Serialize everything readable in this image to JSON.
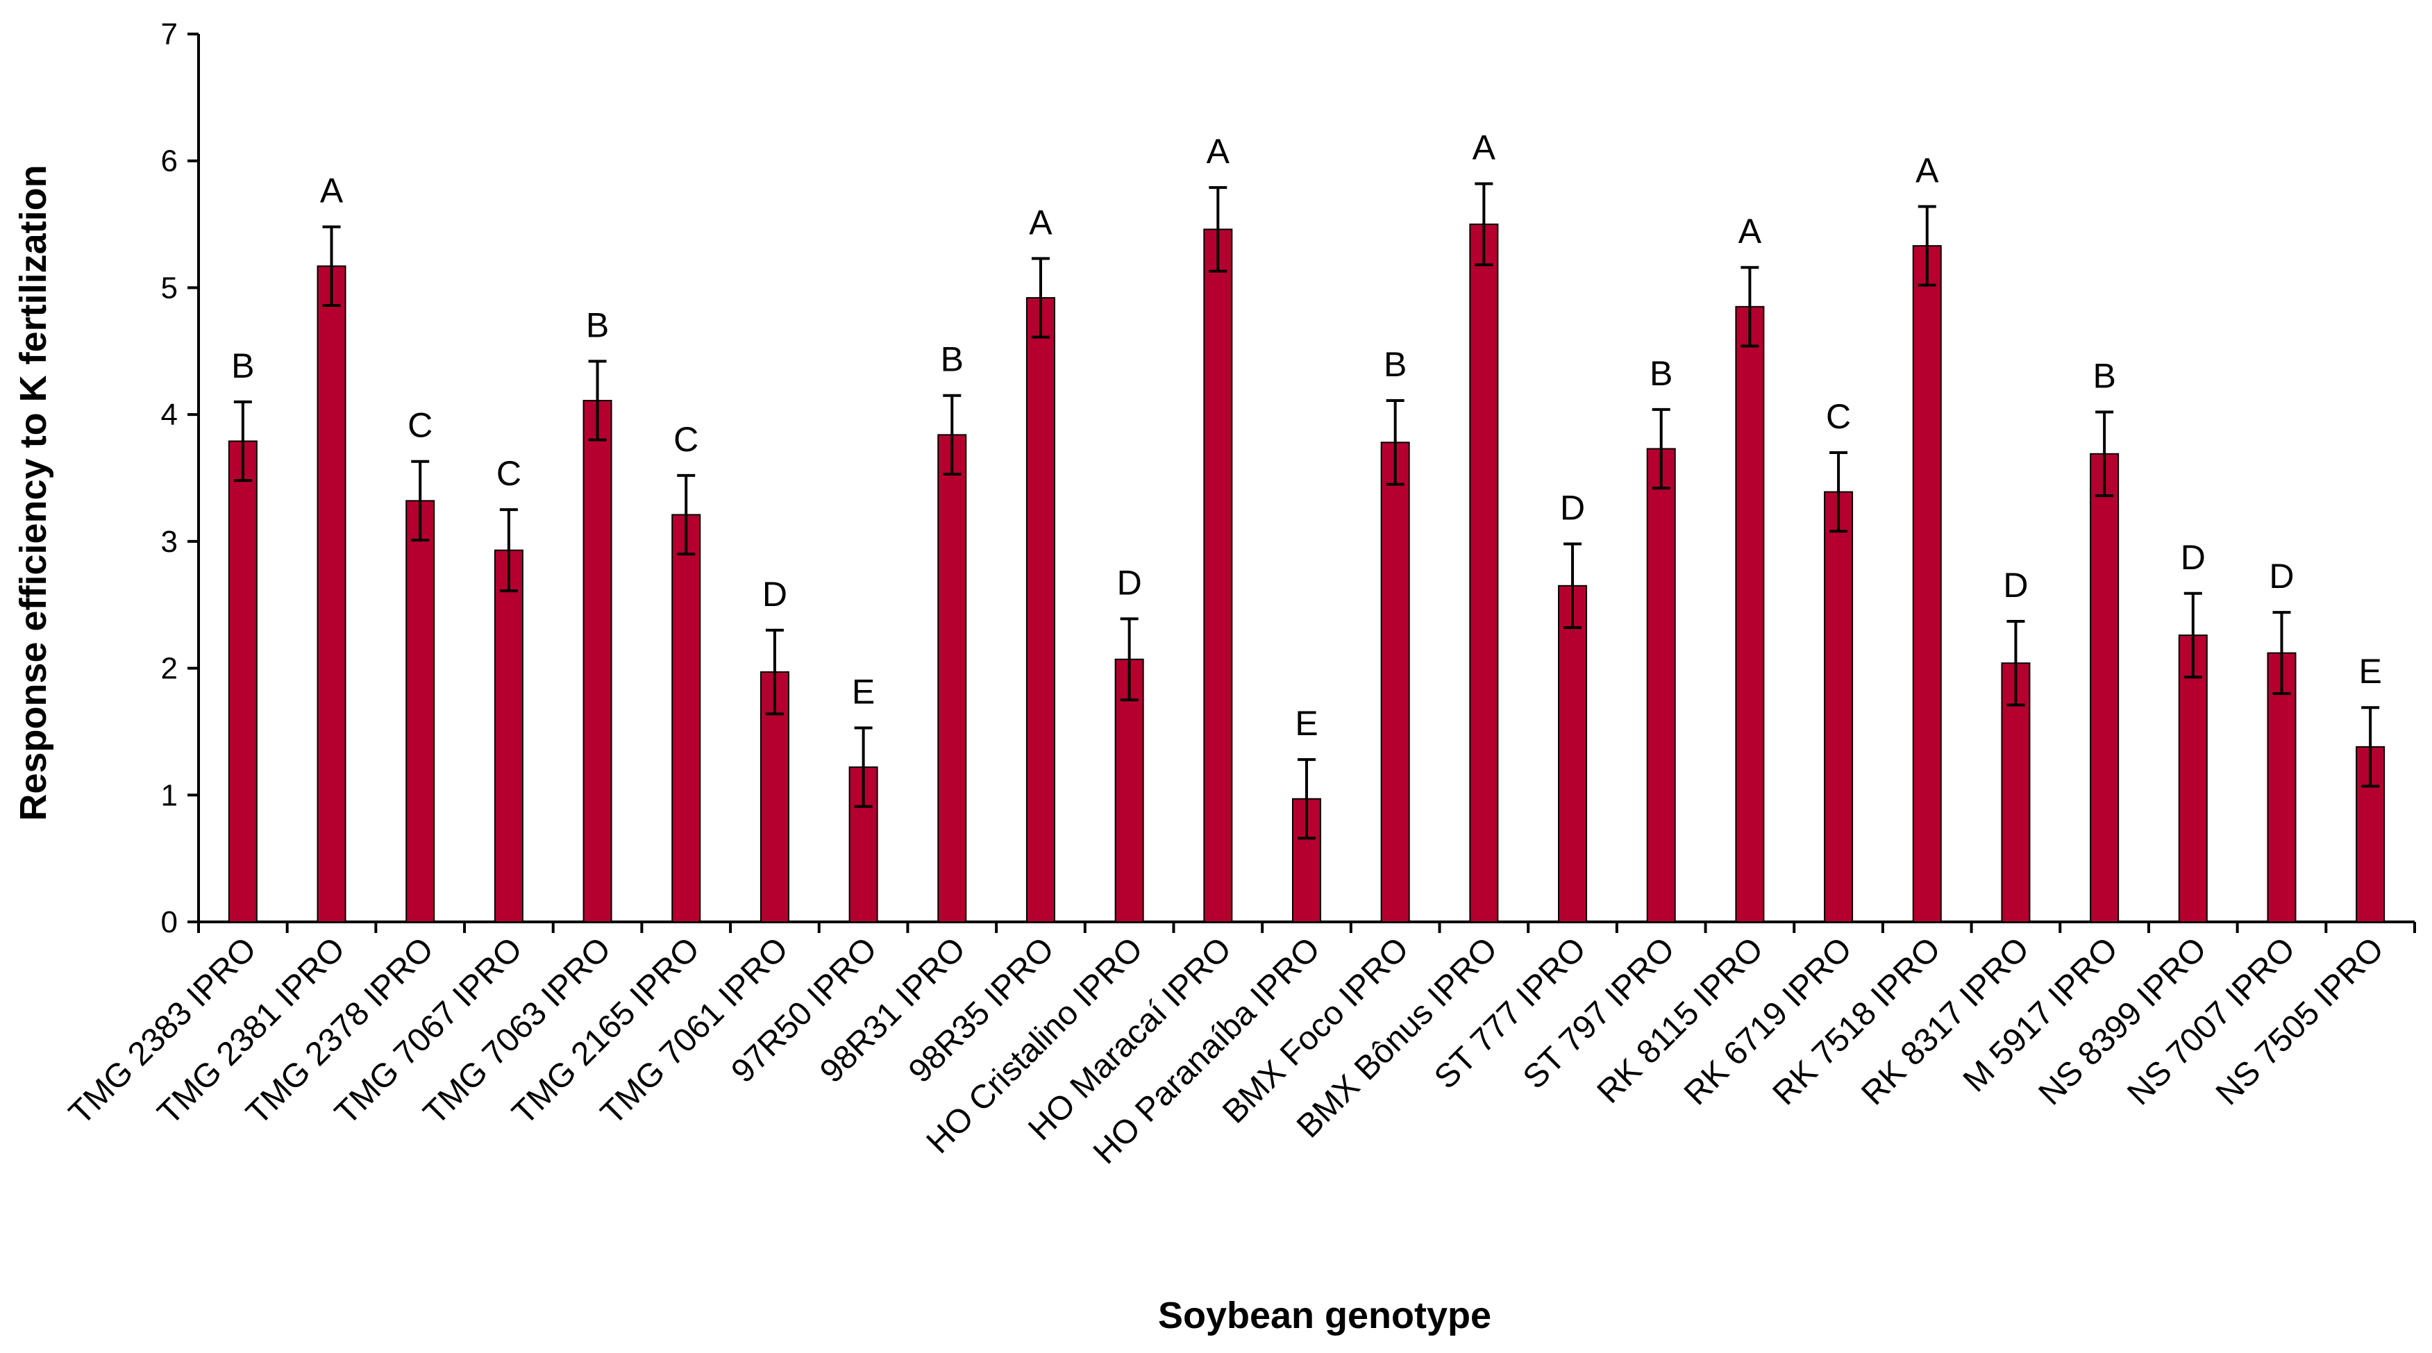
{
  "chart_data": {
    "type": "bar",
    "xlabel": "Soybean genotype",
    "ylabel": "Response efficiency to K fertilization",
    "ylim": [
      0,
      7
    ],
    "yticks": [
      "0",
      "1",
      "2",
      "3",
      "4",
      "5",
      "6",
      "7"
    ],
    "bar_color": "#b5002f",
    "categories": [
      "TMG 2383 IPRO",
      "TMG 2381 IPRO",
      "TMG 2378 IPRO",
      "TMG 7067 IPRO",
      "TMG 7063 IPRO",
      "TMG 2165 IPRO",
      "TMG 7061 IPRO",
      "97R50 IPRO",
      "98R31 IPRO",
      "98R35 IPRO",
      "HO Cristalino IPRO",
      "HO Maracaí IPRO",
      "HO Paranaíba IPRO",
      "BMX Foco IPRO",
      "BMX Bônus IPRO",
      "ST 777 IPRO",
      "ST 797 IPRO",
      "RK 8115 IPRO",
      "RK 6719 IPRO",
      "RK 7518 IPRO",
      "RK 8317 IPRO",
      "M 5917 IPRO",
      "NS 8399 IPRO",
      "NS 7007 IPRO",
      "NS 7505 IPRO"
    ],
    "values": [
      3.79,
      5.17,
      3.32,
      2.93,
      4.11,
      3.21,
      1.97,
      1.22,
      3.84,
      4.92,
      2.07,
      5.46,
      0.97,
      3.78,
      5.5,
      2.65,
      3.73,
      4.85,
      3.39,
      5.33,
      2.04,
      3.69,
      2.26,
      2.12,
      1.38
    ],
    "errors": [
      0.31,
      0.31,
      0.31,
      0.32,
      0.31,
      0.31,
      0.33,
      0.31,
      0.31,
      0.31,
      0.32,
      0.33,
      0.31,
      0.33,
      0.32,
      0.33,
      0.31,
      0.31,
      0.31,
      0.31,
      0.33,
      0.33,
      0.33,
      0.32,
      0.31
    ],
    "significance": [
      "B",
      "A",
      "C",
      "C",
      "B",
      "C",
      "D",
      "E",
      "B",
      "A",
      "D",
      "A",
      "E",
      "B",
      "A",
      "D",
      "B",
      "A",
      "C",
      "A",
      "D",
      "B",
      "D",
      "D",
      "E"
    ]
  }
}
